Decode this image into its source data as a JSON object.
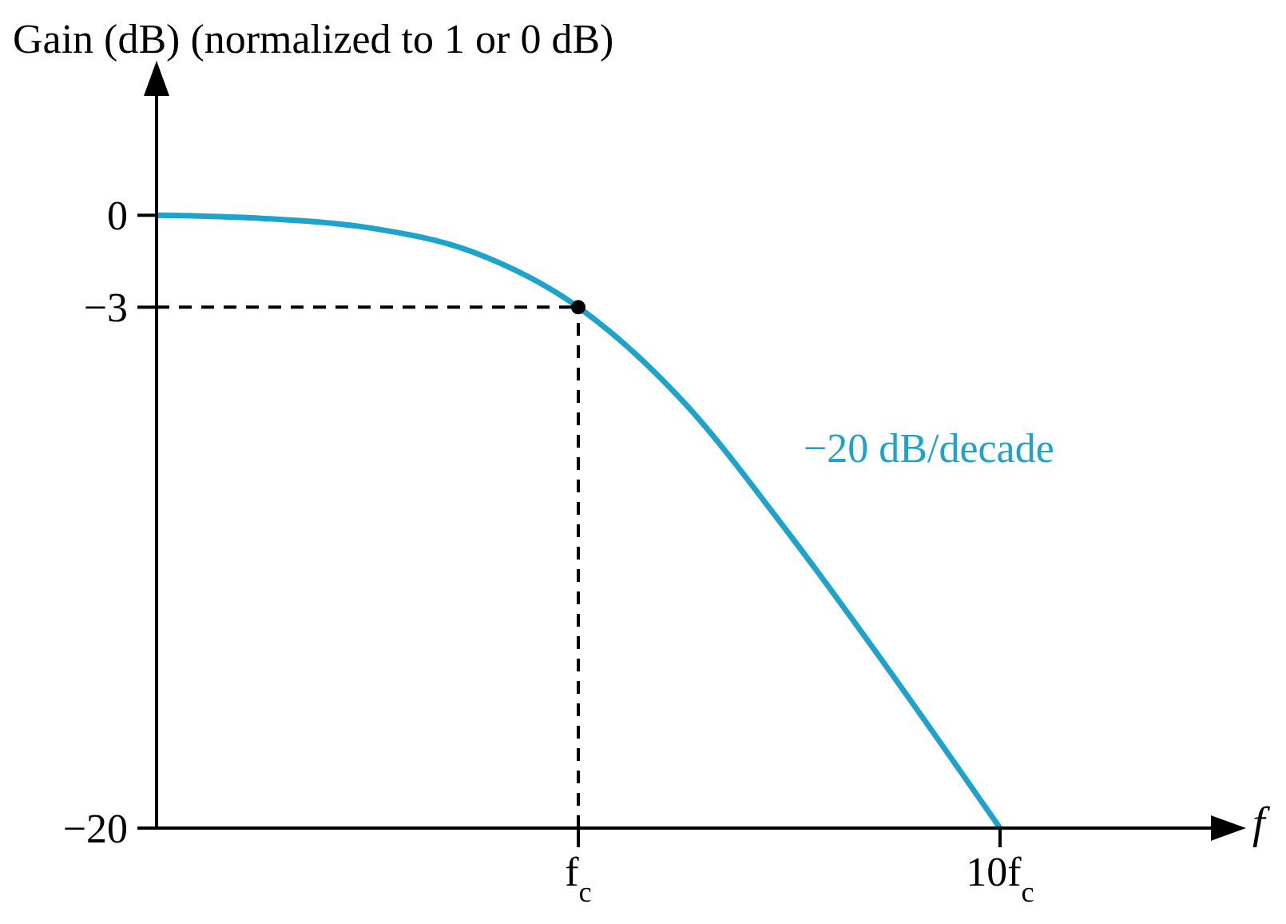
{
  "chart_data": {
    "type": "line",
    "ylabel": "Gain (dB) (normalized to 1 or 0 dB)",
    "xlabel": "f",
    "categories": [
      null,
      null,
      null,
      null,
      "f$_{c}$",
      null,
      null,
      null,
      "10f$_{c}$",
      null,
      null
    ],
    "ylim": [
      -20,
      4
    ],
    "yticks": [
      0,
      -3,
      -20
    ],
    "grid": false,
    "marker": "none",
    "line_style": "solid",
    "series": [
      {
        "color": "#1ea4cc",
        "values": [
          0,
          -0.1,
          -0.4,
          -1.2,
          -3,
          -6.1,
          -10.4,
          -15.1,
          -20,
          null,
          null
        ]
      },
      {
        "type": "scatter",
        "marker": "circle",
        "color": "#000000",
        "values": [
          null,
          null,
          null,
          null,
          -3,
          null,
          null,
          null,
          null,
          null,
          null
        ]
      }
    ],
    "ref_lines": [
      {
        "axis": "y",
        "value": -3,
        "color": "#000000",
        "line_style": "dashed"
      },
      {
        "axis": "x",
        "value": "f$_{c}$",
        "color": "#000000",
        "line_style": "dashed"
      }
    ],
    "annotations": [
      "−20 dB/decade"
    ]
  }
}
